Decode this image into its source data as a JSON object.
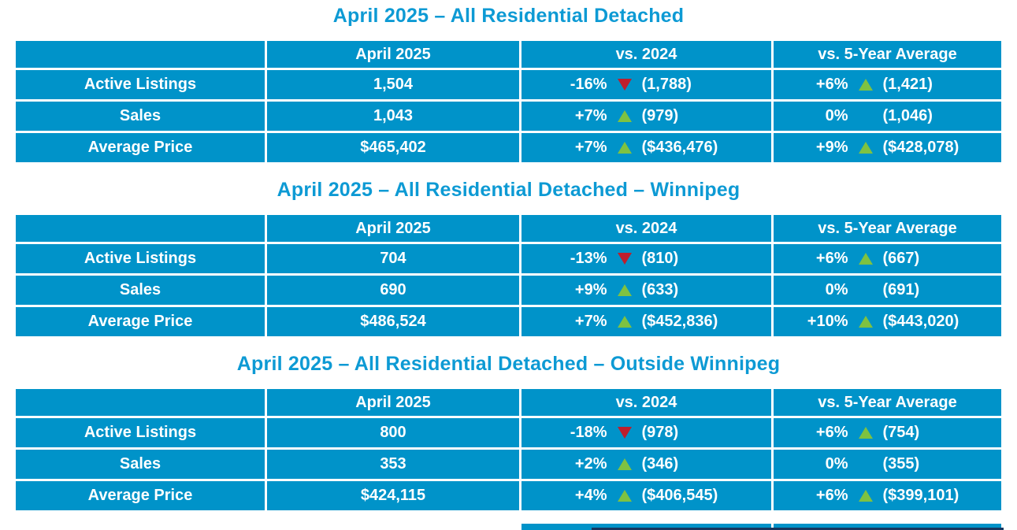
{
  "colors": {
    "table-blue": "#0093c9",
    "title-blue": "#0d9ad4",
    "up-green": "#7fc241",
    "down-red": "#be1e2d",
    "cell-text": "#ffffff",
    "navy-line": "#16365f"
  },
  "columns": [
    "",
    "April 2025",
    "vs. 2024",
    "vs. 5-Year Average"
  ],
  "tables": [
    {
      "title": "April 2025 – All Residential Detached",
      "rows": [
        {
          "label": "Active Listings",
          "current": "1,504",
          "vs2024": {
            "pct": "-16%",
            "dir": "down",
            "value": "(1,788)"
          },
          "vs5yr": {
            "pct": "+6%",
            "dir": "up",
            "value": "(1,421)"
          }
        },
        {
          "label": "Sales",
          "current": "1,043",
          "vs2024": {
            "pct": "+7%",
            "dir": "up",
            "value": "(979)"
          },
          "vs5yr": {
            "pct": "0%",
            "dir": "none",
            "value": "(1,046)"
          }
        },
        {
          "label": "Average Price",
          "current": "$465,402",
          "vs2024": {
            "pct": "+7%",
            "dir": "up",
            "value": "($436,476)"
          },
          "vs5yr": {
            "pct": "+9%",
            "dir": "up",
            "value": "($428,078)"
          }
        }
      ]
    },
    {
      "title": "April 2025 – All Residential Detached – Winnipeg",
      "rows": [
        {
          "label": "Active Listings",
          "current": "704",
          "vs2024": {
            "pct": "-13%",
            "dir": "down",
            "value": "(810)"
          },
          "vs5yr": {
            "pct": "+6%",
            "dir": "up",
            "value": "(667)"
          }
        },
        {
          "label": "Sales",
          "current": "690",
          "vs2024": {
            "pct": "+9%",
            "dir": "up",
            "value": "(633)"
          },
          "vs5yr": {
            "pct": "0%",
            "dir": "none",
            "value": "(691)"
          }
        },
        {
          "label": "Average Price",
          "current": "$486,524",
          "vs2024": {
            "pct": "+7%",
            "dir": "up",
            "value": "($452,836)"
          },
          "vs5yr": {
            "pct": "+10%",
            "dir": "up",
            "value": "($443,020)"
          }
        }
      ]
    },
    {
      "title": "April 2025 – All Residential Detached – Outside Winnipeg",
      "rows": [
        {
          "label": "Active Listings",
          "current": "800",
          "vs2024": {
            "pct": "-18%",
            "dir": "down",
            "value": "(978)"
          },
          "vs5yr": {
            "pct": "+6%",
            "dir": "up",
            "value": "(754)"
          }
        },
        {
          "label": "Sales",
          "current": "353",
          "vs2024": {
            "pct": "+2%",
            "dir": "up",
            "value": "(346)"
          },
          "vs5yr": {
            "pct": "0%",
            "dir": "none",
            "value": "(355)"
          }
        },
        {
          "label": "Average Price",
          "current": "$424,115",
          "vs2024": {
            "pct": "+4%",
            "dir": "up",
            "value": "($406,545)"
          },
          "vs5yr": {
            "pct": "+6%",
            "dir": "up",
            "value": "($399,101)"
          }
        }
      ]
    }
  ]
}
